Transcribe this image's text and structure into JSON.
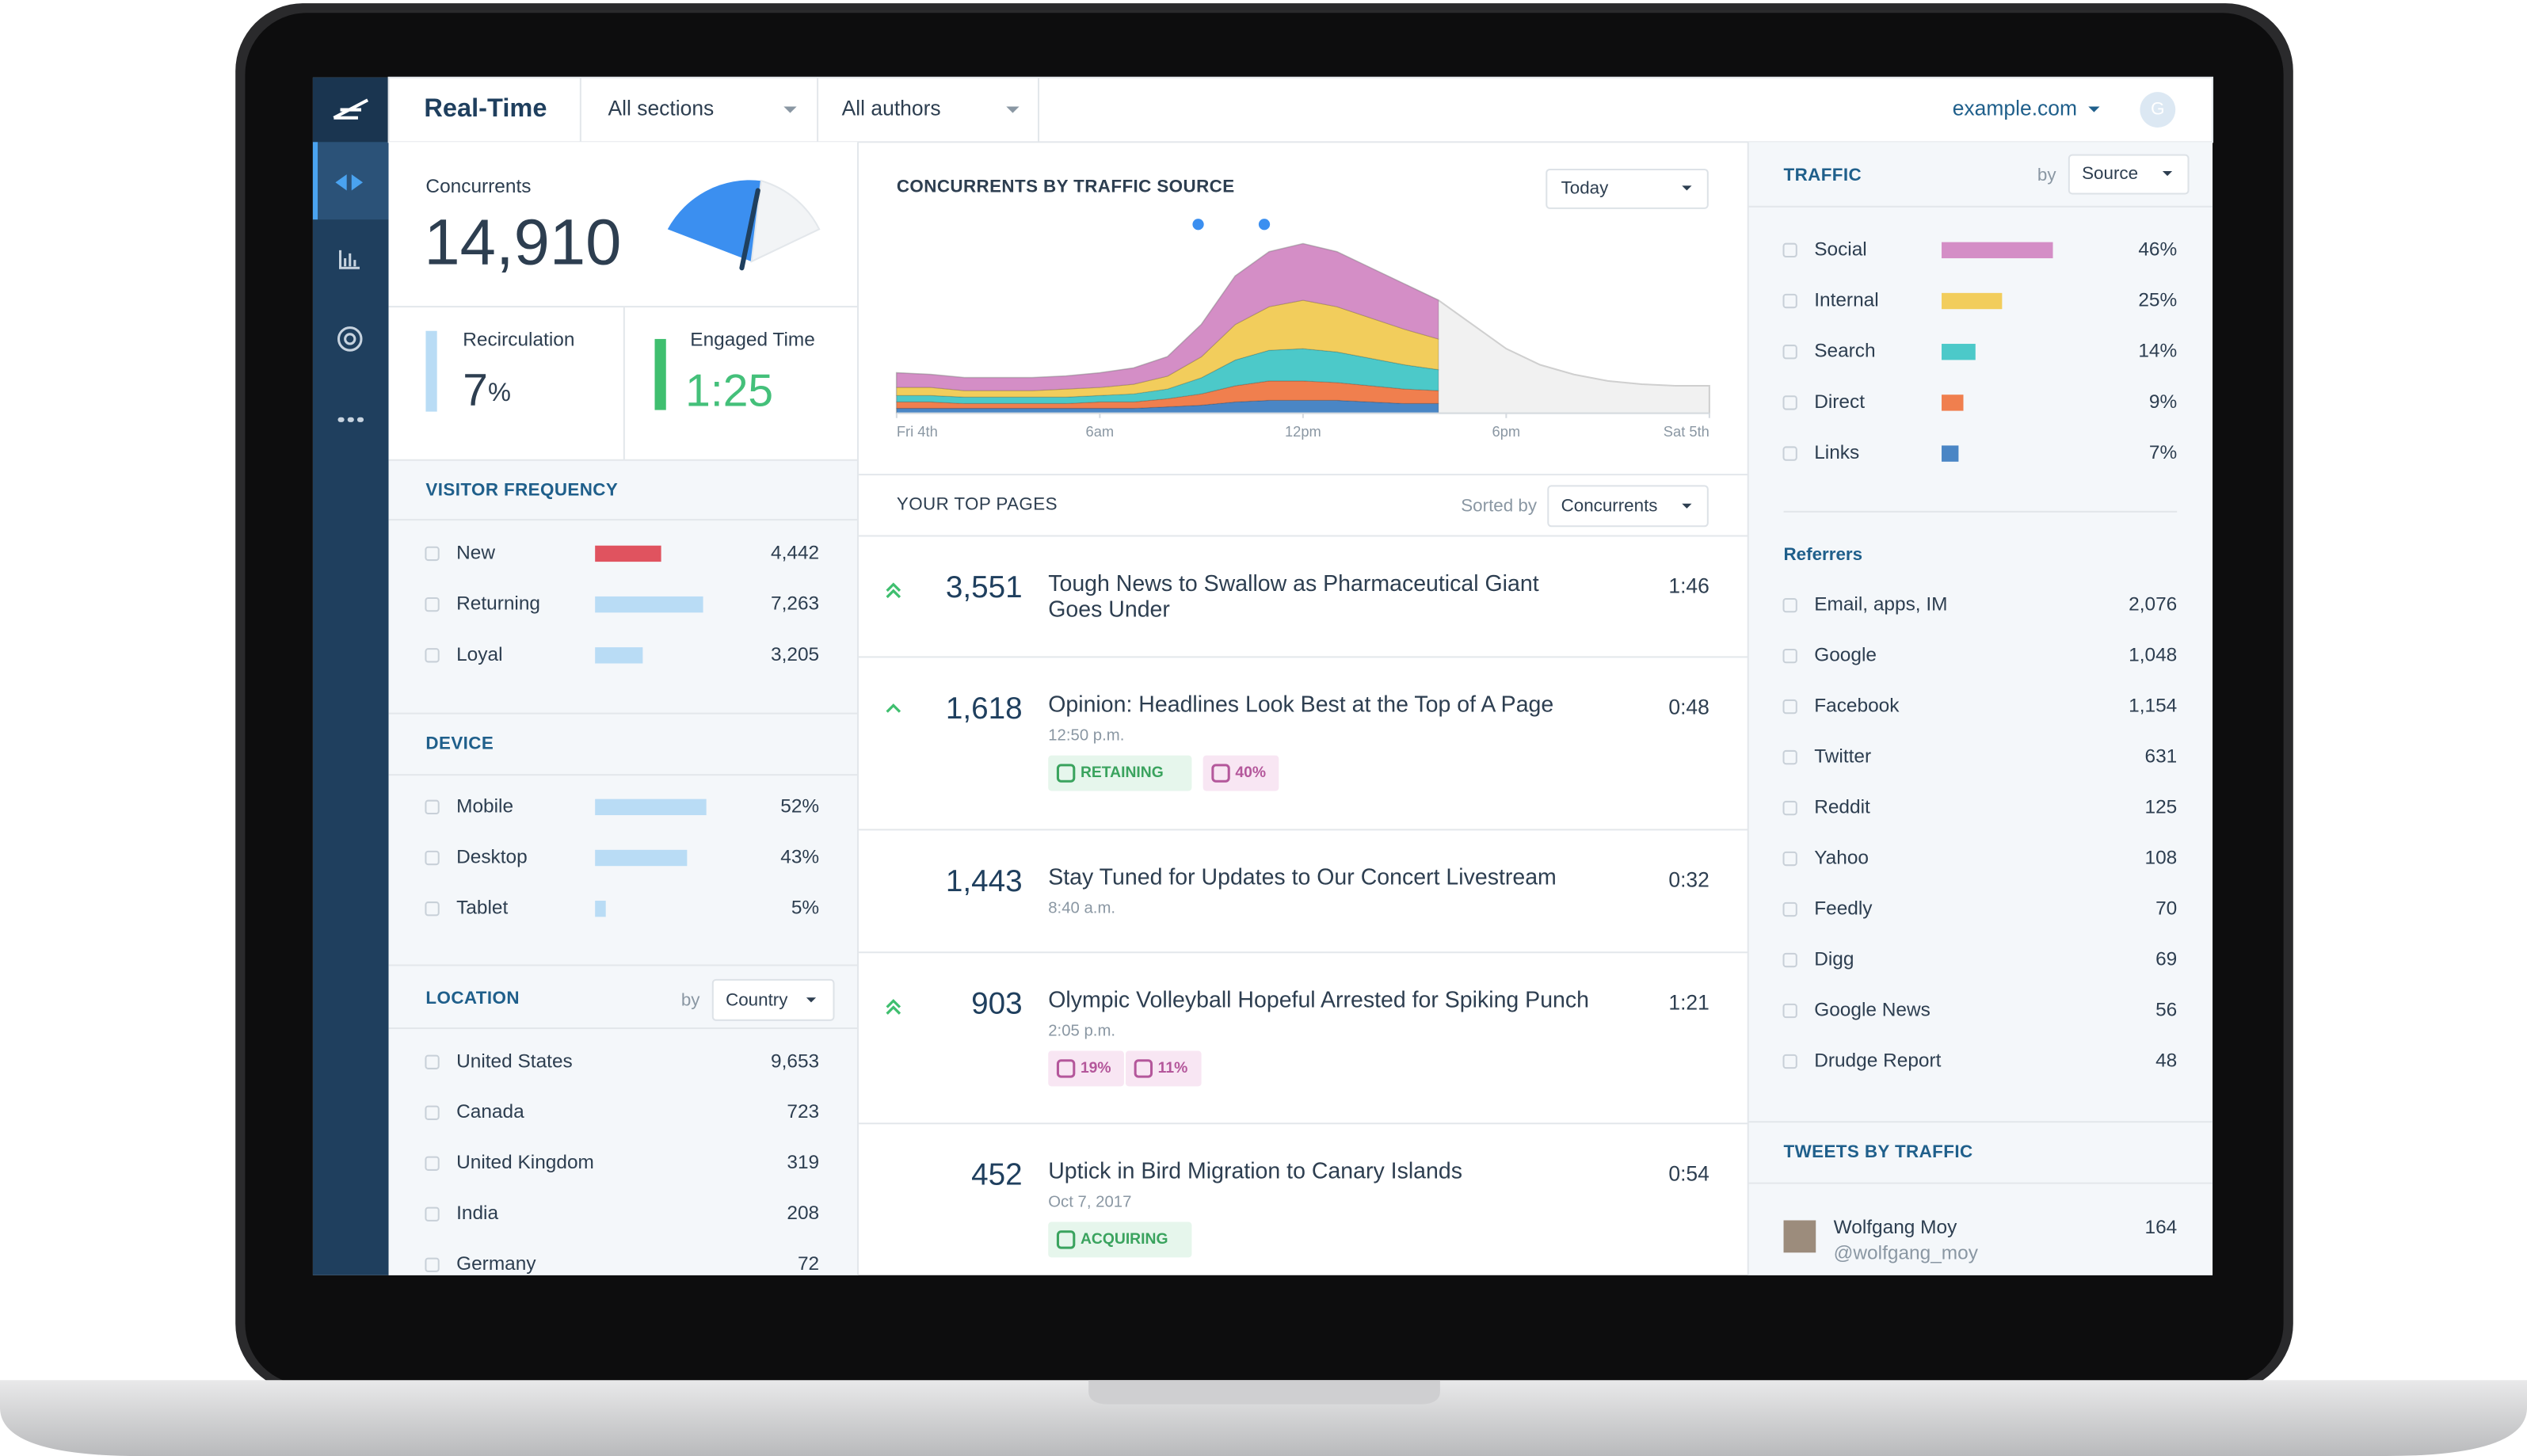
{
  "header": {
    "brand": "Real-Time",
    "sections": "All sections",
    "authors": "All authors",
    "site": "example.com",
    "avatar": "G"
  },
  "concurrents": {
    "label": "Concurrents",
    "value": "14,910"
  },
  "recirculation": {
    "label": "Recirculation",
    "value": "7",
    "unit": "%"
  },
  "engaged_time": {
    "label": "Engaged Time",
    "value": "1:25"
  },
  "visitor_frequency": {
    "title": "VISITOR FREQUENCY",
    "rows": [
      {
        "label": "New",
        "value": 4442,
        "value_label": "4,442",
        "color": "#e0535f"
      },
      {
        "label": "Returning",
        "value": 7263,
        "value_label": "7,263",
        "color": "#b9dcf5"
      },
      {
        "label": "Loyal",
        "value": 3205,
        "value_label": "3,205",
        "color": "#b9dcf5"
      }
    ]
  },
  "device": {
    "title": "DEVICE",
    "rows": [
      {
        "label": "Mobile",
        "value": 52,
        "value_label": "52%"
      },
      {
        "label": "Desktop",
        "value": 43,
        "value_label": "43%"
      },
      {
        "label": "Tablet",
        "value": 5,
        "value_label": "5%"
      }
    ]
  },
  "location": {
    "title": "LOCATION",
    "by": "by",
    "dropdown": "Country",
    "rows": [
      {
        "label": "United States",
        "value": "9,653"
      },
      {
        "label": "Canada",
        "value": "723"
      },
      {
        "label": "United Kingdom",
        "value": "319"
      },
      {
        "label": "India",
        "value": "208"
      },
      {
        "label": "Germany",
        "value": "72"
      }
    ]
  },
  "chart_data": {
    "type": "area",
    "title": "CONCURRENTS BY TRAFFIC SOURCE",
    "dropdown": "Today",
    "x": [
      0,
      1,
      2,
      3,
      4,
      5,
      6,
      7,
      8,
      9,
      10,
      11,
      12,
      13,
      14,
      15,
      16,
      17,
      18,
      19,
      20,
      21,
      22,
      23,
      24
    ],
    "xlim": [
      0,
      24
    ],
    "xticks": [
      {
        "value": 0,
        "label": "Fri 4th"
      },
      {
        "value": 6,
        "label": "6am"
      },
      {
        "value": 12,
        "label": "12pm"
      },
      {
        "value": 18,
        "label": "6pm"
      },
      {
        "value": 24,
        "label": "Sat 5th"
      }
    ],
    "ylim": [
      0,
      120
    ],
    "total": {
      "color": "#f1f1f1",
      "values": [
        25,
        24,
        22,
        22,
        22,
        23,
        25,
        28,
        35,
        55,
        85,
        100,
        105,
        100,
        90,
        80,
        70,
        55,
        40,
        30,
        24,
        20,
        18,
        17,
        17
      ]
    },
    "series": [
      {
        "color": "#4a86c5",
        "values": [
          3,
          3,
          3,
          3,
          3,
          3,
          3,
          3,
          4,
          5,
          7,
          8,
          8,
          8,
          7,
          6,
          6,
          null,
          null,
          null,
          null,
          null,
          null,
          null,
          null
        ]
      },
      {
        "color": "#f07f4e",
        "values": [
          4,
          4,
          3,
          3,
          3,
          3,
          4,
          4,
          5,
          7,
          10,
          12,
          12,
          11,
          10,
          9,
          8,
          null,
          null,
          null,
          null,
          null,
          null,
          null,
          null
        ]
      },
      {
        "color": "#4cc9c9",
        "values": [
          4,
          4,
          4,
          4,
          4,
          4,
          4,
          5,
          6,
          10,
          16,
          19,
          20,
          19,
          17,
          15,
          13,
          null,
          null,
          null,
          null,
          null,
          null,
          null,
          null
        ]
      },
      {
        "color": "#f2cd5c",
        "values": [
          5,
          5,
          4,
          4,
          4,
          5,
          5,
          6,
          8,
          13,
          22,
          27,
          30,
          28,
          25,
          22,
          19,
          null,
          null,
          null,
          null,
          null,
          null,
          null,
          null
        ]
      },
      {
        "color": "#d48ec6",
        "values": [
          9,
          8,
          8,
          8,
          8,
          8,
          9,
          10,
          12,
          20,
          30,
          34,
          35,
          34,
          31,
          28,
          24,
          null,
          null,
          null,
          null,
          null,
          null,
          null,
          null
        ]
      }
    ]
  },
  "top_pages": {
    "title": "YOUR TOP PAGES",
    "sorted_by": "Sorted by",
    "dropdown": "Concurrents",
    "items": [
      {
        "count": "3,551",
        "title": "Tough News to Swallow as Pharmaceutical Giant Goes Under",
        "time": "1:46"
      },
      {
        "count": "1,618",
        "title": "Opinion: Headlines Look Best at the Top of A Page",
        "time": "0:48",
        "subtitle": "12:50 p.m.",
        "badges": [
          "RETAINING",
          "40%"
        ]
      },
      {
        "count": "1,443",
        "title": "Stay Tuned for Updates to Our Concert Livestream",
        "time": "0:32",
        "subtitle": "8:40 a.m."
      },
      {
        "count": "903",
        "title": "Olympic Volleyball Hopeful Arrested for Spiking Punch",
        "time": "1:21",
        "subtitle": "2:05 p.m.",
        "badges": [
          "19%",
          "11%"
        ]
      },
      {
        "count": "452",
        "title": "Uptick in Bird Migration to Canary Islands",
        "time": "0:54",
        "subtitle": "Oct 7, 2017",
        "badges": [
          "ACQUIRING"
        ]
      }
    ]
  },
  "traffic": {
    "title": "TRAFFIC",
    "by": "by",
    "dropdown": "Source",
    "rows": [
      {
        "label": "Social",
        "value": 46,
        "value_label": "46%",
        "color": "#d48ec6"
      },
      {
        "label": "Internal",
        "value": 25,
        "value_label": "25%",
        "color": "#f2cd5c"
      },
      {
        "label": "Search",
        "value": 14,
        "value_label": "14%",
        "color": "#4cc9c9"
      },
      {
        "label": "Direct",
        "value": 9,
        "value_label": "9%",
        "color": "#f07f4e"
      },
      {
        "label": "Links",
        "value": 7,
        "value_label": "7%",
        "color": "#4a86c5"
      }
    ]
  },
  "referrers": {
    "title": "Referrers",
    "rows": [
      {
        "label": "Email, apps, IM",
        "value": "2,076"
      },
      {
        "label": "Google",
        "value": "1,048"
      },
      {
        "label": "Facebook",
        "value": "1,154"
      },
      {
        "label": "Twitter",
        "value": "631"
      },
      {
        "label": "Reddit",
        "value": "125"
      },
      {
        "label": "Yahoo",
        "value": "108"
      },
      {
        "label": "Feedly",
        "value": "70"
      },
      {
        "label": "Digg",
        "value": "69"
      },
      {
        "label": "Google News",
        "value": "56"
      },
      {
        "label": "Drudge Report",
        "value": "48"
      }
    ]
  },
  "tweets": {
    "title": "TWEETS BY TRAFFIC",
    "rows": [
      {
        "name": "Wolfgang Moy",
        "handle": "@wolfgang_moy",
        "value": "164"
      }
    ]
  }
}
